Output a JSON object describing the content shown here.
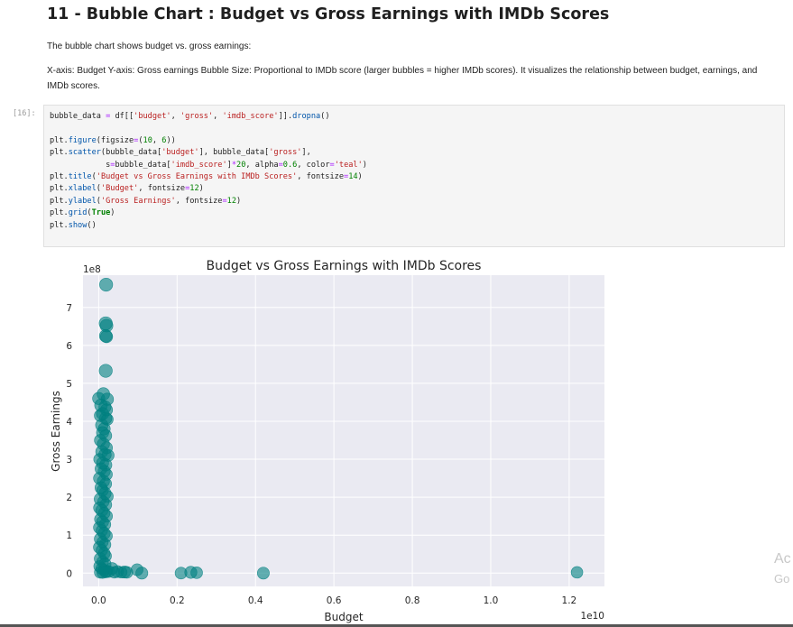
{
  "heading": "11 - Bubble Chart : Budget vs Gross Earnings with IMDb Scores",
  "paragraph1": "The bubble chart shows budget vs. gross earnings:",
  "paragraph2": "X-axis: Budget Y-axis: Gross earnings Bubble Size: Proportional to IMDb score (larger bubbles = higher IMDb scores). It visualizes the relationship between budget, earnings, and IMDb scores.",
  "cell_prompt": "[16]:",
  "watermark": {
    "line1": "Ac",
    "line2": "Go"
  },
  "chart_data": {
    "type": "scatter",
    "title": "Budget vs Gross Earnings with IMDb Scores",
    "xlabel": "Budget",
    "ylabel": "Gross Earnings",
    "x_offset_label": "1e10",
    "y_offset_label": "1e8",
    "xlim": [
      -0.04,
      1.29
    ],
    "ylim": [
      -0.35,
      7.85
    ],
    "xticks": [
      0.0,
      0.2,
      0.4,
      0.6,
      0.8,
      1.0,
      1.2
    ],
    "xtick_labels": [
      "0.0",
      "0.2",
      "0.4",
      "0.6",
      "0.8",
      "1.0",
      "1.2"
    ],
    "yticks": [
      0,
      1,
      2,
      3,
      4,
      5,
      6,
      7
    ],
    "ytick_labels": [
      "0",
      "1",
      "2",
      "3",
      "4",
      "5",
      "6",
      "7"
    ],
    "grid": true,
    "color": "#008080",
    "alpha": 0.6,
    "points": [
      [
        0.019,
        7.6,
        8.0
      ],
      [
        0.018,
        6.58,
        8.1
      ],
      [
        0.02,
        6.52,
        7.6
      ],
      [
        0.018,
        6.25,
        7.4
      ],
      [
        0.02,
        6.23,
        7.0
      ],
      [
        0.018,
        5.33,
        8.0
      ],
      [
        0.0,
        4.6,
        7.0
      ],
      [
        0.012,
        4.72,
        7.4
      ],
      [
        0.022,
        4.58,
        7.2
      ],
      [
        0.006,
        4.42,
        7.6
      ],
      [
        0.016,
        4.38,
        7.0
      ],
      [
        0.02,
        4.3,
        6.8
      ],
      [
        0.01,
        4.2,
        7.2
      ],
      [
        0.004,
        4.15,
        6.6
      ],
      [
        0.018,
        4.08,
        7.0
      ],
      [
        0.022,
        4.05,
        6.5
      ],
      [
        0.008,
        3.9,
        7.3
      ],
      [
        0.014,
        3.8,
        6.9
      ],
      [
        0.01,
        3.7,
        7.0
      ],
      [
        0.018,
        3.62,
        6.7
      ],
      [
        0.004,
        3.5,
        6.4
      ],
      [
        0.012,
        3.4,
        7.1
      ],
      [
        0.02,
        3.3,
        6.6
      ],
      [
        0.008,
        3.2,
        6.9
      ],
      [
        0.016,
        3.12,
        7.3
      ],
      [
        0.024,
        3.1,
        6.8
      ],
      [
        0.002,
        3.0,
        6.2
      ],
      [
        0.01,
        2.9,
        6.8
      ],
      [
        0.018,
        2.85,
        7.0
      ],
      [
        0.006,
        2.75,
        6.6
      ],
      [
        0.014,
        2.68,
        6.9
      ],
      [
        0.02,
        2.6,
        6.4
      ],
      [
        0.002,
        2.5,
        6.6
      ],
      [
        0.012,
        2.42,
        7.0
      ],
      [
        0.018,
        2.35,
        6.5
      ],
      [
        0.006,
        2.25,
        6.8
      ],
      [
        0.01,
        2.18,
        6.3
      ],
      [
        0.016,
        2.1,
        7.1
      ],
      [
        0.022,
        2.02,
        6.6
      ],
      [
        0.004,
        1.95,
        6.9
      ],
      [
        0.012,
        1.88,
        6.2
      ],
      [
        0.018,
        1.8,
        6.7
      ],
      [
        0.002,
        1.72,
        6.5
      ],
      [
        0.008,
        1.65,
        7.0
      ],
      [
        0.014,
        1.58,
        6.4
      ],
      [
        0.02,
        1.5,
        6.6
      ],
      [
        0.004,
        1.42,
        6.1
      ],
      [
        0.01,
        1.35,
        6.8
      ],
      [
        0.016,
        1.28,
        6.3
      ],
      [
        0.002,
        1.2,
        6.7
      ],
      [
        0.008,
        1.12,
        6.2
      ],
      [
        0.014,
        1.05,
        6.9
      ],
      [
        0.02,
        0.98,
        6.4
      ],
      [
        0.004,
        0.9,
        6.6
      ],
      [
        0.01,
        0.82,
        6.0
      ],
      [
        0.016,
        0.75,
        6.5
      ],
      [
        0.002,
        0.68,
        6.8
      ],
      [
        0.008,
        0.6,
        6.2
      ],
      [
        0.014,
        0.52,
        6.6
      ],
      [
        0.018,
        0.45,
        6.1
      ],
      [
        0.004,
        0.38,
        6.7
      ],
      [
        0.01,
        0.3,
        6.3
      ],
      [
        0.016,
        0.24,
        6.9
      ],
      [
        0.002,
        0.18,
        6.0
      ],
      [
        0.008,
        0.12,
        6.5
      ],
      [
        0.014,
        0.08,
        6.2
      ],
      [
        0.02,
        0.05,
        6.8
      ],
      [
        0.004,
        0.02,
        6.4
      ],
      [
        0.01,
        0.01,
        6.0
      ],
      [
        0.018,
        0.03,
        6.6
      ],
      [
        0.026,
        0.04,
        6.4
      ],
      [
        0.034,
        0.12,
        6.8
      ],
      [
        0.04,
        0.02,
        6.2
      ],
      [
        0.048,
        0.04,
        6.6
      ],
      [
        0.058,
        0.02,
        6.0
      ],
      [
        0.066,
        0.03,
        6.9
      ],
      [
        0.072,
        0.02,
        6.4
      ],
      [
        0.098,
        0.09,
        6.6
      ],
      [
        0.11,
        0.0,
        6.8
      ],
      [
        0.21,
        0.0,
        6.5
      ],
      [
        0.235,
        0.02,
        6.9
      ],
      [
        0.25,
        0.01,
        6.4
      ],
      [
        0.42,
        0.0,
        6.7
      ],
      [
        1.22,
        0.02,
        6.3
      ]
    ]
  }
}
